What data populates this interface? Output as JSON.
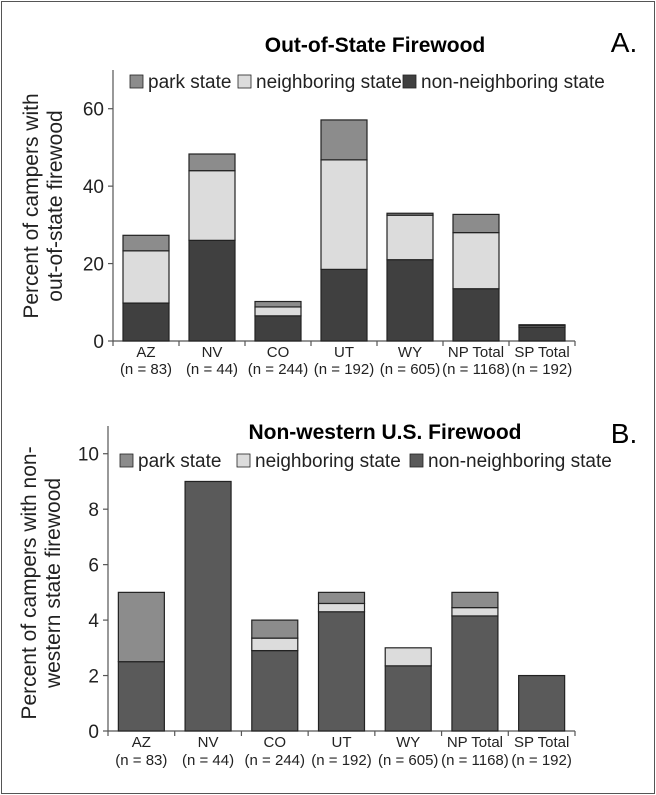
{
  "chart_data": [
    {
      "type": "bar",
      "stacked": true,
      "panel_label": "A.",
      "title": "Out-of-State Firewood",
      "ylabel": [
        "Percent of campers with",
        "out-of-state firewood"
      ],
      "ylim": [
        0,
        70
      ],
      "yticks": [
        0,
        20,
        40,
        60
      ],
      "categories": [
        "AZ",
        "NV",
        "CO",
        "UT",
        "WY",
        "NP Total",
        "SP Total"
      ],
      "category_n": [
        "(n = 83)",
        "(n = 44)",
        "(n = 244)",
        "(n = 192)",
        "(n = 605)",
        "(n = 1168)",
        "(n = 192)"
      ],
      "legend_position": "top",
      "series": [
        {
          "name": "non-neighboring state",
          "color": "#404040",
          "values": [
            9.8,
            26,
            6.5,
            18.5,
            21,
            13.5,
            3.6
          ]
        },
        {
          "name": "neighboring state",
          "color": "#dcdcdc",
          "values": [
            13.5,
            18,
            2.3,
            28.3,
            11.5,
            14.5,
            0.4
          ]
        },
        {
          "name": "park state",
          "color": "#8c8c8c",
          "values": [
            4,
            4.3,
            1.4,
            10.3,
            0.5,
            4.7,
            0.2
          ]
        }
      ]
    },
    {
      "type": "bar",
      "stacked": true,
      "panel_label": "B.",
      "title": "Non-western U.S. Firewood",
      "ylabel": [
        "Percent of campers with non-",
        "western state firewood"
      ],
      "ylim": [
        0,
        11
      ],
      "yticks": [
        0,
        2,
        4,
        6,
        8,
        10
      ],
      "categories": [
        "AZ",
        "NV",
        "CO",
        "UT",
        "WY",
        "NP Total",
        "SP Total"
      ],
      "category_n": [
        "(n = 83)",
        "(n = 44)",
        "(n = 244)",
        "(n = 192)",
        "(n = 605)",
        "(n = 1168)",
        "(n = 192)"
      ],
      "legend_position": "top",
      "series": [
        {
          "name": "non-neighboring state",
          "color": "#5a5a5a",
          "values": [
            2.5,
            9,
            2.9,
            4.3,
            2.35,
            4.15,
            2
          ]
        },
        {
          "name": "neighboring state",
          "color": "#dcdcdc",
          "values": [
            0,
            0,
            0.45,
            0.3,
            0.65,
            0.3,
            0
          ]
        },
        {
          "name": "park state",
          "color": "#8c8c8c",
          "values": [
            2.5,
            0,
            0.65,
            0.4,
            0,
            0.55,
            0
          ]
        }
      ]
    }
  ]
}
